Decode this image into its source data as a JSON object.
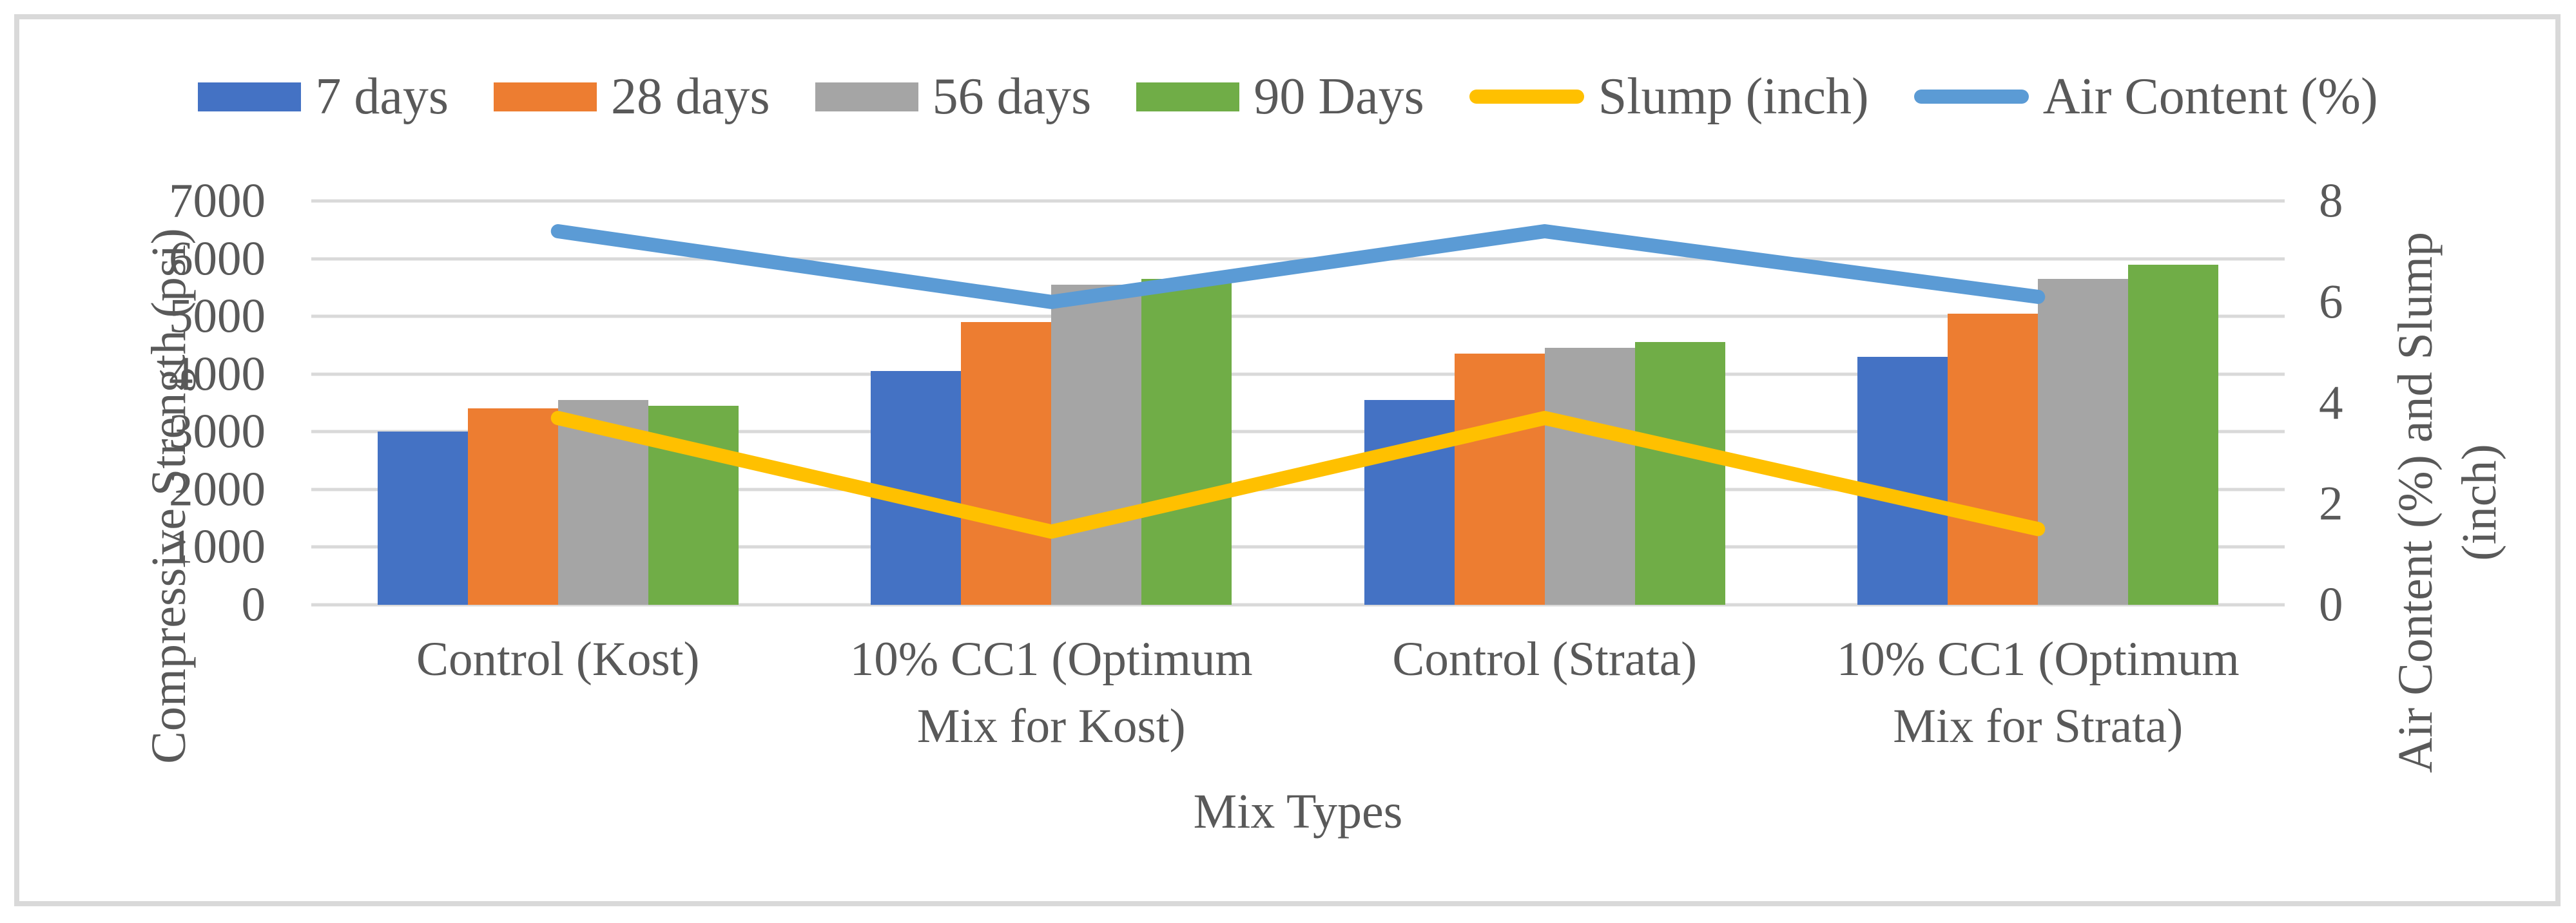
{
  "chart_data": {
    "type": "bar",
    "subtype": "clustered-bar-with-lines-combo",
    "title": "",
    "categories": [
      "Control (Kost)",
      "10% CC1 (Optimum Mix for Kost)",
      "Control (Strata)",
      "10% CC1 (Optimum Mix for Strata)"
    ],
    "category_label_lines": [
      [
        "Control (Kost)"
      ],
      [
        "10% CC1 (Optimum",
        "Mix for Kost)"
      ],
      [
        "Control (Strata)"
      ],
      [
        "10% CC1 (Optimum",
        "Mix for Strata)"
      ]
    ],
    "bar_series": [
      {
        "name": "7 days",
        "color": "#4472C4",
        "axis": "left",
        "values": [
          3000,
          4050,
          3550,
          4300
        ]
      },
      {
        "name": "28 days",
        "color": "#ED7D31",
        "axis": "left",
        "values": [
          3400,
          4900,
          4350,
          5050
        ]
      },
      {
        "name": "56 days",
        "color": "#A5A5A5",
        "axis": "left",
        "values": [
          3550,
          5550,
          4450,
          5650
        ]
      },
      {
        "name": "90 Days",
        "color": "#70AD47",
        "axis": "left",
        "values": [
          3450,
          5650,
          4550,
          5900
        ]
      }
    ],
    "line_series": [
      {
        "name": "Slump (inch)",
        "color": "#FFC000",
        "axis": "right",
        "values": [
          3.7,
          1.45,
          3.7,
          1.5
        ]
      },
      {
        "name": "Air Content (%)",
        "color": "#5B9BD5",
        "axis": "right",
        "values": [
          7.4,
          6.0,
          7.4,
          6.1
        ]
      }
    ],
    "left_axis": {
      "label": "Compressive Strength (psi)",
      "min": 0,
      "max": 7000,
      "step": 1000,
      "ticks": [
        "0",
        "1000",
        "2000",
        "3000",
        "4000",
        "5000",
        "6000",
        "7000"
      ]
    },
    "right_axis": {
      "label_lines": [
        "Air Content (%) and Slump",
        "(inch)"
      ],
      "min": 0,
      "max": 8,
      "step": 2,
      "ticks": [
        "0",
        "2",
        "4",
        "6",
        "8"
      ]
    },
    "x_axis": {
      "label": "Mix Types"
    },
    "legend": {
      "position": "top",
      "items": [
        {
          "label": "7 days",
          "marker": "rect",
          "color": "#4472C4"
        },
        {
          "label": "28 days",
          "marker": "rect",
          "color": "#ED7D31"
        },
        {
          "label": "56 days",
          "marker": "rect",
          "color": "#A5A5A5"
        },
        {
          "label": "90 Days",
          "marker": "rect",
          "color": "#70AD47"
        },
        {
          "label": "Slump (inch)",
          "marker": "line",
          "color": "#FFC000"
        },
        {
          "label": "Air Content (%)",
          "marker": "line",
          "color": "#5B9BD5"
        }
      ]
    },
    "grid": true,
    "styles": {
      "grid_color": "#D9D9D9",
      "text_color": "#595959",
      "frame_border_color": "#D9D9D9",
      "background": "#FFFFFF"
    }
  }
}
